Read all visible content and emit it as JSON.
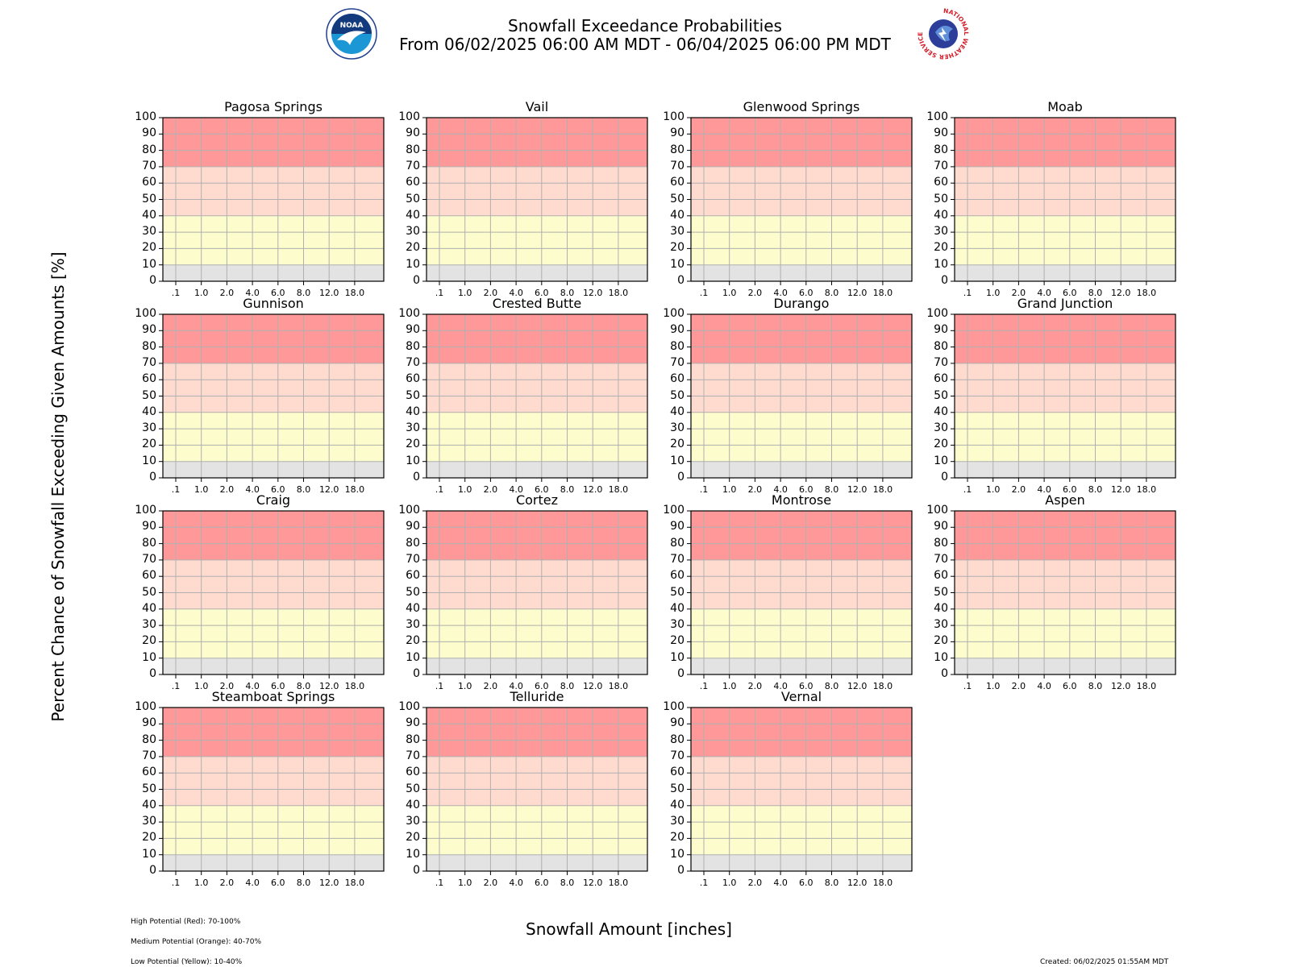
{
  "header": {
    "title_line1": "Snowfall Exceedance Probabilities",
    "title_line2": "From 06/02/2025 06:00 AM MDT - 06/04/2025 06:00 PM MDT",
    "left_logo_icon": "noaa-logo-icon",
    "right_logo_icon": "nws-logo-icon",
    "noaa_logo_text": "NOAA",
    "nws_logo_text": "NATIONAL WEATHER SERVICE"
  },
  "axes": {
    "ylabel": "Percent Chance of Snowfall Exceeding Given Amounts [%]",
    "xlabel": "Snowfall Amount [inches]"
  },
  "legend_notes": [
    "High Potential (Red): 70-100%",
    "Medium Potential (Orange): 40-70%",
    "Low Potential (Yellow): 10-40%"
  ],
  "created": "Created: 06/02/2025 01:55AM MDT",
  "colors": {
    "high": "#ff9999",
    "medium": "#ffdbcf",
    "low": "#fcfccc",
    "minimal": "#e3e3e3",
    "grid": "#b0b0b0"
  },
  "chart_data": {
    "type": "line",
    "ylim": [
      0,
      100
    ],
    "yticks": [
      "0",
      "10",
      "20",
      "30",
      "40",
      "50",
      "60",
      "70",
      "80",
      "90",
      "100"
    ],
    "xticks": [
      ".1",
      "1.0",
      "2.0",
      "4.0",
      "6.0",
      "8.0",
      "12.0",
      "18.0"
    ],
    "bands": [
      {
        "name": "High Potential (Red)",
        "range": [
          70,
          100
        ],
        "color": "#ff9999"
      },
      {
        "name": "Medium Potential (Orange)",
        "range": [
          40,
          70
        ],
        "color": "#ffdbcf"
      },
      {
        "name": "Low Potential (Yellow)",
        "range": [
          10,
          40
        ],
        "color": "#fcfccc"
      },
      {
        "name": "",
        "range": [
          0,
          10
        ],
        "color": "#e3e3e3"
      }
    ],
    "panels": [
      {
        "title": "Pagosa Springs",
        "values": []
      },
      {
        "title": "Vail",
        "values": []
      },
      {
        "title": "Glenwood Springs",
        "values": []
      },
      {
        "title": "Moab",
        "values": []
      },
      {
        "title": "Gunnison",
        "values": []
      },
      {
        "title": "Crested Butte",
        "values": []
      },
      {
        "title": "Durango",
        "values": []
      },
      {
        "title": "Grand Junction",
        "values": []
      },
      {
        "title": "Craig",
        "values": []
      },
      {
        "title": "Cortez",
        "values": []
      },
      {
        "title": "Montrose",
        "values": []
      },
      {
        "title": "Aspen",
        "values": []
      },
      {
        "title": "Steamboat Springs",
        "values": []
      },
      {
        "title": "Telluride",
        "values": []
      },
      {
        "title": "Vernal",
        "values": []
      }
    ]
  }
}
